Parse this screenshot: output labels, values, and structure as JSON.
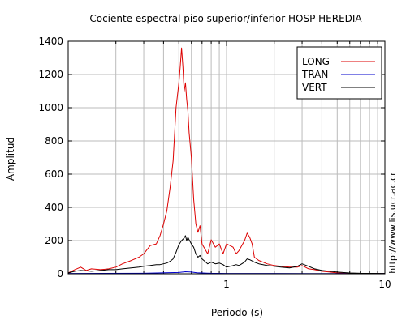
{
  "chart_data": {
    "type": "line",
    "title": "Cociente espectral piso superior/inferior  HOSP HEREDIA",
    "xlabel": "Periodo (s)",
    "ylabel": "Amplitud",
    "x_scale": "log",
    "xlim": [
      0.1,
      10
    ],
    "ylim": [
      0,
      1400
    ],
    "x_ticks": [
      {
        "value": 1,
        "label": "1"
      },
      {
        "value": 10,
        "label": "10"
      }
    ],
    "y_ticks": [
      0,
      200,
      400,
      600,
      800,
      1000,
      1200,
      1400
    ],
    "grid": true,
    "legend_position": "top-right",
    "watermark": "http://www.lis.ucr.ac.cr",
    "series": [
      {
        "name": "LONG",
        "color": "#dd0000",
        "x": [
          0.1,
          0.11,
          0.12,
          0.13,
          0.14,
          0.16,
          0.18,
          0.2,
          0.22,
          0.25,
          0.28,
          0.3,
          0.33,
          0.36,
          0.38,
          0.4,
          0.42,
          0.44,
          0.46,
          0.48,
          0.5,
          0.51,
          0.52,
          0.53,
          0.54,
          0.55,
          0.56,
          0.57,
          0.58,
          0.6,
          0.62,
          0.64,
          0.66,
          0.68,
          0.7,
          0.73,
          0.76,
          0.8,
          0.85,
          0.9,
          0.95,
          1.0,
          1.05,
          1.1,
          1.15,
          1.2,
          1.3,
          1.35,
          1.4,
          1.45,
          1.5,
          1.6,
          1.7,
          1.8,
          2.0,
          2.2,
          2.5,
          2.8,
          3.0,
          3.3,
          3.6,
          4.0,
          4.5,
          5.0,
          6.0,
          7.0,
          8.0,
          10.0
        ],
        "y": [
          5,
          25,
          40,
          20,
          30,
          25,
          30,
          40,
          60,
          80,
          100,
          120,
          170,
          180,
          230,
          300,
          380,
          520,
          680,
          1000,
          1150,
          1250,
          1360,
          1250,
          1100,
          1150,
          1050,
          980,
          850,
          700,
          450,
          300,
          250,
          290,
          180,
          150,
          120,
          205,
          160,
          180,
          120,
          180,
          170,
          160,
          120,
          140,
          200,
          245,
          220,
          180,
          100,
          80,
          70,
          60,
          50,
          45,
          40,
          40,
          50,
          30,
          25,
          15,
          10,
          5,
          3,
          2,
          1,
          1
        ]
      },
      {
        "name": "TRAN",
        "color": "#0000cc",
        "x": [
          0.1,
          0.3,
          0.5,
          0.55,
          0.6,
          0.65,
          0.8,
          1.0,
          2.0,
          5.0,
          10.0
        ],
        "y": [
          2,
          3,
          8,
          12,
          10,
          6,
          3,
          2,
          2,
          1,
          1
        ]
      },
      {
        "name": "VERT",
        "color": "#000000",
        "x": [
          0.1,
          0.11,
          0.12,
          0.14,
          0.16,
          0.18,
          0.2,
          0.22,
          0.25,
          0.28,
          0.3,
          0.33,
          0.36,
          0.38,
          0.4,
          0.42,
          0.44,
          0.46,
          0.48,
          0.5,
          0.52,
          0.54,
          0.55,
          0.56,
          0.57,
          0.58,
          0.6,
          0.62,
          0.64,
          0.66,
          0.68,
          0.7,
          0.73,
          0.76,
          0.8,
          0.85,
          0.9,
          0.95,
          1.0,
          1.05,
          1.1,
          1.15,
          1.2,
          1.3,
          1.35,
          1.4,
          1.5,
          1.6,
          1.7,
          1.8,
          2.0,
          2.2,
          2.5,
          2.8,
          3.0,
          3.3,
          3.6,
          4.0,
          4.5,
          5.0,
          6.0,
          7.0,
          10.0
        ],
        "y": [
          5,
          15,
          20,
          15,
          20,
          25,
          25,
          30,
          35,
          40,
          45,
          50,
          55,
          55,
          60,
          65,
          75,
          90,
          130,
          175,
          200,
          215,
          230,
          200,
          220,
          205,
          180,
          160,
          120,
          100,
          110,
          90,
          75,
          60,
          70,
          60,
          65,
          55,
          40,
          45,
          50,
          55,
          50,
          70,
          90,
          85,
          70,
          60,
          55,
          50,
          45,
          40,
          35,
          45,
          60,
          45,
          30,
          20,
          15,
          10,
          5,
          3,
          2
        ]
      }
    ]
  }
}
